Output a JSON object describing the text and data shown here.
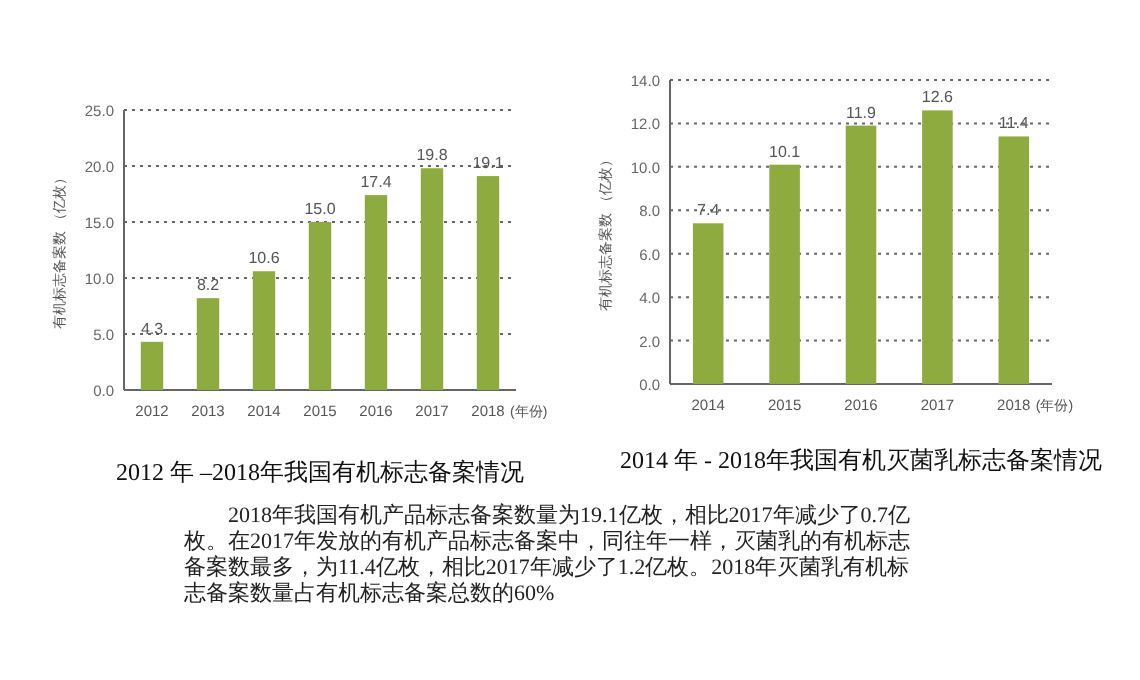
{
  "chart_data": [
    {
      "type": "bar",
      "title": "2012 年 –2018年我国有机标志备案情况",
      "ylabel": "有机标志备案数 （亿枚）",
      "xlabel": "(年份)",
      "categories": [
        "2012",
        "2013",
        "2014",
        "2015",
        "2016",
        "2017",
        "2018"
      ],
      "values": [
        4.3,
        8.2,
        10.6,
        15.0,
        17.4,
        19.8,
        19.1
      ],
      "color": "#8dab3e",
      "ylim": [
        0,
        25
      ],
      "yticks": [
        {
          "value": 0,
          "label": "0.0"
        },
        {
          "value": 5,
          "label": "5.0"
        },
        {
          "value": 10,
          "label": "10.0"
        },
        {
          "value": 15,
          "label": "15.0"
        },
        {
          "value": 20,
          "label": "20.0"
        },
        {
          "value": 25,
          "label": "25.0"
        }
      ],
      "value_labels": [
        "4.3",
        "8.2",
        "10.6",
        "15.0",
        "17.4",
        "19.8",
        "19.1"
      ],
      "grid": "y",
      "line_style": "dotted"
    },
    {
      "type": "bar",
      "title": "2014 年 - 2018年我国有机灭菌乳标志备案情况",
      "ylabel": "有机标志备案数 （亿枚）",
      "xlabel": "(年份)",
      "categories": [
        "2014",
        "2015",
        "2016",
        "2017",
        "2018"
      ],
      "values": [
        7.4,
        10.1,
        11.9,
        12.6,
        11.4
      ],
      "color": "#8dab3e",
      "ylim": [
        0,
        14
      ],
      "yticks": [
        {
          "value": 0,
          "label": "0.0"
        },
        {
          "value": 2,
          "label": "2.0"
        },
        {
          "value": 4,
          "label": "4.0"
        },
        {
          "value": 6,
          "label": "6.0"
        },
        {
          "value": 8,
          "label": "8.0"
        },
        {
          "value": 10,
          "label": "10.0"
        },
        {
          "value": 12,
          "label": "12.0"
        },
        {
          "value": 14,
          "label": "14.0"
        }
      ],
      "data_labels": true,
      "grid": "y",
      "line_style": "dotted"
    },
    {
      "type": "other",
      "annotations": [
        "2018年我国有机产品标志备案数量为19.1亿枚，相比2017年减少了0.7亿枚。在2017年发放的有机产品标志备案中，同往年一样，灭菌乳的有机标志备案数最多，为11.4亿枚，相比2017年减少了1.2亿枚。2018年灭菌乳有机标志备案数量占有机标志备案总数的60%"
      ]
    }
  ]
}
